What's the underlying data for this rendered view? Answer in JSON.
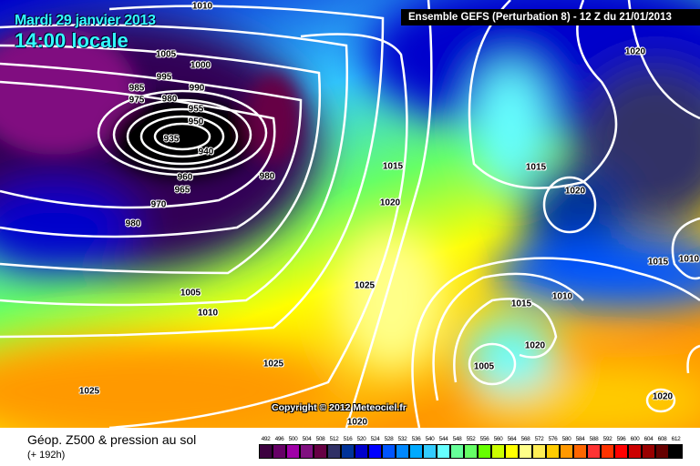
{
  "header": {
    "date": "Mardi 29 janvier 2013",
    "local_time": "14:00 locale",
    "run_info": "Ensemble GEFS (Perturbation 8)  -  12 Z du 21/01/2013"
  },
  "copyright": "Copyright © 2012 Meteociel.fr",
  "isobar_labels": [
    "1010",
    "1005",
    "1000",
    "995",
    "990",
    "985",
    "980",
    "975",
    "955",
    "950",
    "935",
    "940",
    "960",
    "965",
    "970",
    "980",
    "980",
    "1015",
    "1020",
    "1025",
    "1005",
    "1010",
    "1025",
    "1025",
    "1015",
    "1020",
    "1015",
    "1010",
    "1020",
    "1015",
    "1005",
    "1010",
    "1020",
    "1020",
    "1020"
  ],
  "legend": {
    "title": "Géop. Z500 & pression au sol",
    "forecast_hour": "(+ 192h)",
    "scale": [
      {
        "v": "492",
        "c": "#3d0040"
      },
      {
        "v": "496",
        "c": "#660066"
      },
      {
        "v": "500",
        "c": "#a000a8"
      },
      {
        "v": "504",
        "c": "#801080"
      },
      {
        "v": "508",
        "c": "#660044"
      },
      {
        "v": "512",
        "c": "#303066"
      },
      {
        "v": "516",
        "c": "#003399"
      },
      {
        "v": "520",
        "c": "#0000cc"
      },
      {
        "v": "524",
        "c": "#0000ff"
      },
      {
        "v": "528",
        "c": "#0055ff"
      },
      {
        "v": "532",
        "c": "#0088ff"
      },
      {
        "v": "536",
        "c": "#00aaff"
      },
      {
        "v": "540",
        "c": "#33ccff"
      },
      {
        "v": "544",
        "c": "#66ffff"
      },
      {
        "v": "548",
        "c": "#66ff99"
      },
      {
        "v": "552",
        "c": "#66ff66"
      },
      {
        "v": "556",
        "c": "#66ff00"
      },
      {
        "v": "560",
        "c": "#ccff00"
      },
      {
        "v": "564",
        "c": "#ffff00"
      },
      {
        "v": "568",
        "c": "#ffff88"
      },
      {
        "v": "572",
        "c": "#ffee55"
      },
      {
        "v": "576",
        "c": "#ffcc00"
      },
      {
        "v": "580",
        "c": "#ff9900"
      },
      {
        "v": "584",
        "c": "#ff6600"
      },
      {
        "v": "588",
        "c": "#ff3333"
      },
      {
        "v": "592",
        "c": "#ff3300"
      },
      {
        "v": "596",
        "c": "#ff0000"
      },
      {
        "v": "600",
        "c": "#cc0000"
      },
      {
        "v": "604",
        "c": "#990000"
      },
      {
        "v": "608",
        "c": "#660000"
      },
      {
        "v": "612",
        "c": "#000000"
      }
    ]
  }
}
